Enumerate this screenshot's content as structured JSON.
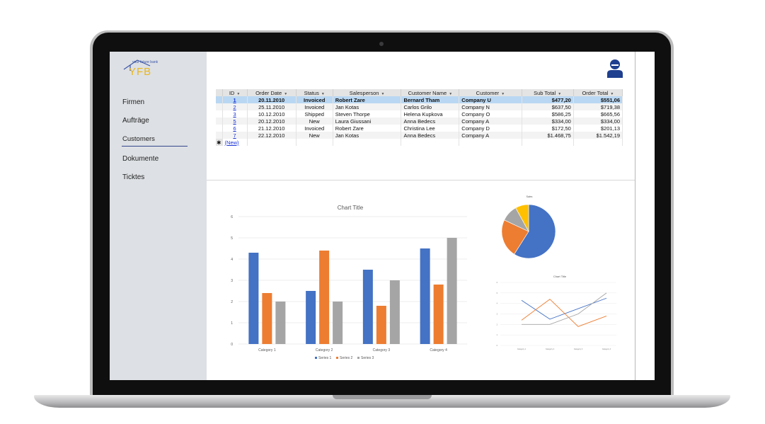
{
  "logo": {
    "tagline": "your future bank",
    "name": "YFB"
  },
  "sidebar": {
    "items": [
      {
        "label": "Firmen"
      },
      {
        "label": "Aufträge"
      },
      {
        "label": "Customers"
      },
      {
        "label": "Dokumente"
      },
      {
        "label": "Ticktes"
      }
    ],
    "active": "Customers"
  },
  "table": {
    "headers": [
      "ID",
      "Order Date",
      "Status",
      "Salesperson",
      "Customer Name",
      "Customer",
      "Sub Total",
      "Order Total"
    ],
    "rows": [
      [
        "1",
        "20.11.2010",
        "Invoiced",
        "Robert Zare",
        "Bernard Tham",
        "Company U",
        "$477,20",
        "$551,06"
      ],
      [
        "2",
        "25.11.2010",
        "Invoiced",
        "Jan Kotas",
        "Carlos Grilo",
        "Company N",
        "$637,50",
        "$719,38"
      ],
      [
        "3",
        "10.12.2010",
        "Shipped",
        "Steven Thorpe",
        "Helena Kupkova",
        "Company O",
        "$586,25",
        "$665,56"
      ],
      [
        "5",
        "20.12.2010",
        "New",
        "Laura Giussani",
        "Anna Bedecs",
        "Company A",
        "$334,00",
        "$334,00"
      ],
      [
        "6",
        "21.12.2010",
        "Invoiced",
        "Robert Zare",
        "Christina Lee",
        "Company D",
        "$172,50",
        "$201,13"
      ],
      [
        "7",
        "22.12.2010",
        "New",
        "Jan Kotas",
        "Anna Bedecs",
        "Company A",
        "$1.468,75",
        "$1.542,19"
      ]
    ],
    "new_row_label": "(New)",
    "new_row_marker": "✱"
  },
  "chart_data": [
    {
      "type": "bar",
      "title": "Chart Title",
      "categories": [
        "Category 1",
        "Category 2",
        "Category 3",
        "Category 4"
      ],
      "series": [
        {
          "name": "Series 1",
          "values": [
            4.3,
            2.5,
            3.5,
            4.5
          ],
          "color": "#4472c4"
        },
        {
          "name": "Series 2",
          "values": [
            2.4,
            4.4,
            1.8,
            2.8
          ],
          "color": "#ed7d31"
        },
        {
          "name": "Series 3",
          "values": [
            2,
            2,
            3,
            5
          ],
          "color": "#a5a5a5"
        }
      ],
      "ylim": [
        0,
        6
      ],
      "yticks": [
        "0",
        "1",
        "2",
        "3",
        "4",
        "5",
        "6"
      ],
      "grid": true,
      "legend": "bottom"
    },
    {
      "type": "pie",
      "title": "Sales",
      "values": [
        59,
        23,
        10,
        8
      ],
      "colors": [
        "#4472c4",
        "#ed7d31",
        "#a5a5a5",
        "#ffc000"
      ]
    },
    {
      "type": "line",
      "title": "Chart Title",
      "categories": [
        "Category 1",
        "Category 2",
        "Category 3",
        "Category 4"
      ],
      "series": [
        {
          "values": [
            4.3,
            2.5,
            3.5,
            4.5
          ],
          "color": "#4472c4"
        },
        {
          "values": [
            2.4,
            4.4,
            1.8,
            2.8
          ],
          "color": "#ed7d31"
        },
        {
          "values": [
            2,
            2,
            3,
            5
          ],
          "color": "#a5a5a5"
        }
      ],
      "ylim": [
        0,
        6
      ],
      "yticks": [
        "0",
        "1",
        "2",
        "3",
        "4",
        "5",
        "6"
      ],
      "grid": true,
      "legend": "bottom"
    }
  ]
}
